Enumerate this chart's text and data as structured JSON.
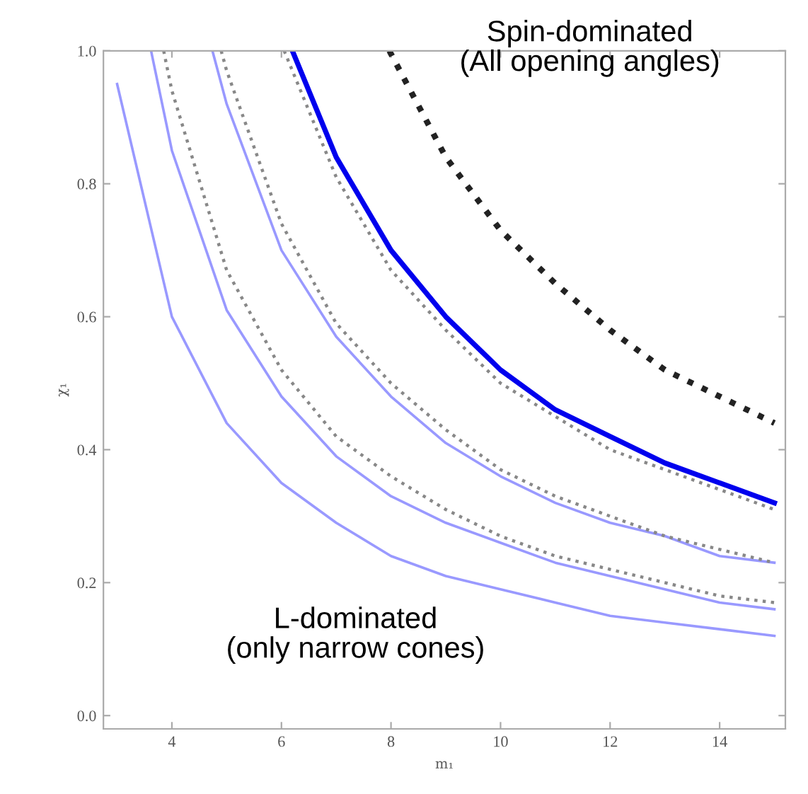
{
  "chart_data": {
    "type": "line",
    "xlabel": "m₁",
    "ylabel": "χ₁",
    "annotations": [
      "Spin-dominated\n(All opening angles)",
      "L-dominated\n(only narrow cones)"
    ],
    "xlim": [
      2.75,
      15.2
    ],
    "ylim": [
      -0.02,
      1.0
    ],
    "xticks": [
      4,
      6,
      8,
      10,
      12,
      14
    ],
    "yticks": [
      {
        "value": 0,
        "label": "0.0"
      },
      {
        "value": 0.2,
        "label": "0.2"
      },
      {
        "value": 0.4,
        "label": "0.4"
      },
      {
        "value": 0.6,
        "label": "0.6"
      },
      {
        "value": 0.8,
        "label": "0.8"
      },
      {
        "value": 1.0,
        "label": "1.0"
      }
    ],
    "grid": false,
    "legend": false,
    "series": [
      {
        "color": "#9999ff",
        "line_style": "solid",
        "x": [
          3.0,
          4,
          5,
          6,
          7,
          8,
          9,
          10,
          11,
          12,
          13,
          14,
          15
        ],
        "values": [
          0.95,
          0.6,
          0.44,
          0.35,
          0.29,
          0.24,
          0.21,
          0.19,
          0.17,
          0.15,
          0.14,
          0.13,
          0.12
        ]
      },
      {
        "color": "#9999ff",
        "line_style": "solid",
        "x": [
          3.62,
          4,
          5,
          6,
          7,
          8,
          9,
          10,
          11,
          12,
          13,
          14,
          15
        ],
        "values": [
          1.0,
          0.85,
          0.61,
          0.48,
          0.39,
          0.33,
          0.29,
          0.26,
          0.23,
          0.21,
          0.19,
          0.17,
          0.16
        ]
      },
      {
        "color": "#888888",
        "line_style": "dotted",
        "x": [
          3.85,
          4,
          5,
          6,
          7,
          8,
          9,
          10,
          11,
          12,
          13,
          14,
          15
        ],
        "values": [
          1.0,
          0.94,
          0.67,
          0.52,
          0.42,
          0.36,
          0.31,
          0.27,
          0.24,
          0.22,
          0.2,
          0.18,
          0.17
        ]
      },
      {
        "color": "#9999ff",
        "line_style": "solid",
        "x": [
          4.74,
          5,
          6,
          7,
          8,
          9,
          10,
          11,
          12,
          13,
          14,
          15
        ],
        "values": [
          1.0,
          0.92,
          0.7,
          0.57,
          0.48,
          0.41,
          0.36,
          0.32,
          0.29,
          0.27,
          0.24,
          0.23
        ]
      },
      {
        "color": "#888888",
        "line_style": "dotted",
        "x": [
          4.9,
          5,
          6,
          7,
          8,
          9,
          10,
          11,
          12,
          13,
          14,
          15
        ],
        "values": [
          1.0,
          0.97,
          0.74,
          0.59,
          0.5,
          0.43,
          0.37,
          0.33,
          0.3,
          0.27,
          0.25,
          0.23
        ]
      },
      {
        "color": "#888888",
        "line_style": "dotted",
        "x": [
          6.05,
          7,
          8,
          9,
          10,
          11,
          12,
          13,
          14,
          15
        ],
        "values": [
          1.0,
          0.81,
          0.67,
          0.58,
          0.5,
          0.45,
          0.4,
          0.37,
          0.34,
          0.31
        ]
      },
      {
        "color": "#0000ee",
        "line_style": "solid",
        "x": [
          6.2,
          7,
          8,
          9,
          10,
          11,
          12,
          13,
          14,
          15
        ],
        "values": [
          1.0,
          0.84,
          0.7,
          0.6,
          0.52,
          0.46,
          0.42,
          0.38,
          0.35,
          0.32
        ]
      },
      {
        "color": "#222222",
        "line_style": "dotted",
        "x": [
          7.97,
          9,
          10,
          11,
          12,
          13,
          14,
          15
        ],
        "values": [
          1.0,
          0.84,
          0.73,
          0.65,
          0.58,
          0.52,
          0.48,
          0.44
        ]
      }
    ]
  }
}
